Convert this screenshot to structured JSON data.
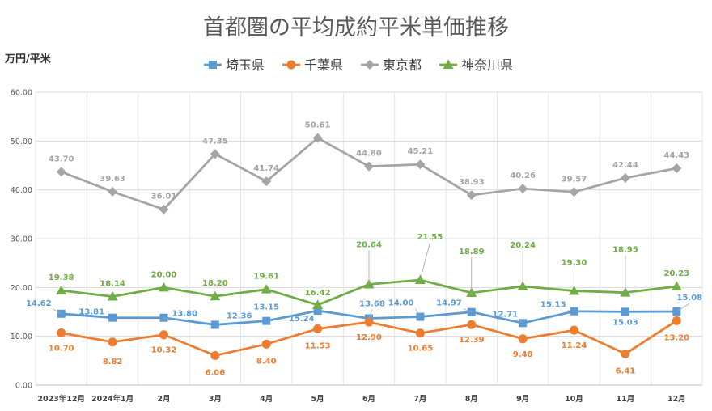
{
  "chart_data": {
    "type": "line",
    "title": "首都圏の平均成約平米単価推移",
    "ylabel": "万円/平米",
    "ylim": [
      0,
      60
    ],
    "yticks": [
      "0.00",
      "10.00",
      "20.00",
      "30.00",
      "40.00",
      "50.00",
      "60.00"
    ],
    "grid": true,
    "legend": "top",
    "categories": [
      "2023年12月",
      "2024年1月",
      "2月",
      "3月",
      "4月",
      "5月",
      "6月",
      "7月",
      "8月",
      "9月",
      "10月",
      "11月",
      "12月"
    ],
    "series": [
      {
        "name": "埼玉県",
        "color": "#5B9BD5",
        "marker": "square",
        "values": [
          14.62,
          13.81,
          13.8,
          12.36,
          13.15,
          15.24,
          13.68,
          14.0,
          14.97,
          12.71,
          15.13,
          15.03,
          15.08
        ],
        "labels": [
          "14.62",
          "13.81",
          "13.80",
          "12.36",
          "13.15",
          "15.24",
          "13.68",
          "14.00",
          "14.97",
          "12.71",
          "15.13",
          "15.03",
          "15.08"
        ]
      },
      {
        "name": "千葉県",
        "color": "#ED7D31",
        "marker": "circle",
        "values": [
          10.7,
          8.82,
          10.32,
          6.06,
          8.4,
          11.53,
          12.9,
          10.65,
          12.39,
          9.48,
          11.24,
          6.41,
          13.2
        ],
        "labels": [
          "10.70",
          "8.82",
          "10.32",
          "6.06",
          "8.40",
          "11.53",
          "12.90",
          "10.65",
          "12.39",
          "9.48",
          "11.24",
          "6.41",
          "13.20"
        ]
      },
      {
        "name": "東京都",
        "color": "#A5A5A5",
        "marker": "diamond",
        "values": [
          43.7,
          39.63,
          36.01,
          47.35,
          41.74,
          50.61,
          44.8,
          45.21,
          38.93,
          40.26,
          39.57,
          42.44,
          44.43
        ],
        "labels": [
          "43.70",
          "39.63",
          "36.01",
          "47.35",
          "41.74",
          "50.61",
          "44.80",
          "45.21",
          "38.93",
          "40.26",
          "39.57",
          "42.44",
          "44.43"
        ]
      },
      {
        "name": "神奈川県",
        "color": "#70AD47",
        "marker": "triangle",
        "values": [
          19.38,
          18.14,
          20.0,
          18.2,
          19.61,
          16.42,
          20.64,
          21.55,
          18.89,
          20.24,
          19.3,
          18.95,
          20.23
        ],
        "labels": [
          "19.38",
          "18.14",
          "20.00",
          "18.20",
          "19.61",
          "16.42",
          "20.64",
          "21.55",
          "18.89",
          "20.24",
          "19.30",
          "18.95",
          "20.23"
        ]
      }
    ]
  }
}
